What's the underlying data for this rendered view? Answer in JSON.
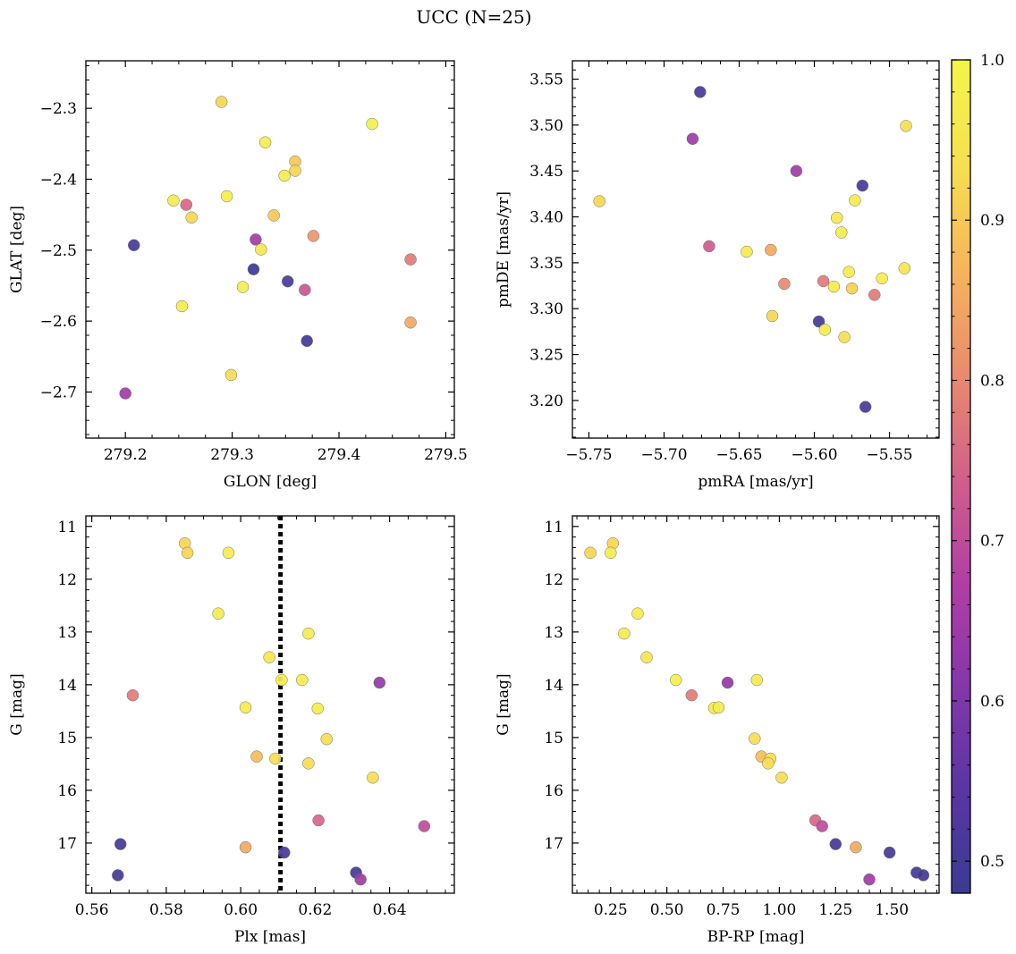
{
  "title": "UCC (N=25)",
  "colorbar": {
    "range": [
      0.48,
      1.0
    ],
    "ticks": [
      0.5,
      0.6,
      0.7,
      0.8,
      0.9,
      1.0
    ],
    "tick_labels": [
      "0.5",
      "0.6",
      "0.7",
      "0.8",
      "0.9",
      "1.0"
    ],
    "colormap": "plasma",
    "stops": [
      "#3c3a93",
      "#5a36a3",
      "#8537a9",
      "#b13fa4",
      "#d2608a",
      "#e98c6d",
      "#f6b55c",
      "#f6e050",
      "#f3f54a"
    ]
  },
  "chart_data": [
    {
      "type": "scatter",
      "id": "glon-glat",
      "xlabel": "GLON [deg]",
      "ylabel": "GLAT [deg]",
      "xlim": [
        279.163,
        279.508
      ],
      "ylim": [
        -2.765,
        -2.233
      ],
      "y_inverted": false,
      "xticks": [
        279.2,
        279.3,
        279.4,
        279.5
      ],
      "xtick_labels": [
        "279.2",
        "279.3",
        "279.4",
        "279.5"
      ],
      "yticks": [
        -2.3,
        -2.4,
        -2.5,
        -2.6,
        -2.7
      ],
      "ytick_labels": [
        "−2.3",
        "−2.4",
        "−2.5",
        "−2.6",
        "−2.7"
      ],
      "points": [
        {
          "x": 279.29,
          "y": -2.291,
          "c": 0.92
        },
        {
          "x": 279.431,
          "y": -2.322,
          "c": 0.98
        },
        {
          "x": 279.331,
          "y": -2.348,
          "c": 0.97
        },
        {
          "x": 279.359,
          "y": -2.375,
          "c": 0.9
        },
        {
          "x": 279.359,
          "y": -2.388,
          "c": 0.92
        },
        {
          "x": 279.349,
          "y": -2.395,
          "c": 0.97
        },
        {
          "x": 279.295,
          "y": -2.424,
          "c": 0.98
        },
        {
          "x": 279.245,
          "y": -2.43,
          "c": 0.97
        },
        {
          "x": 279.257,
          "y": -2.436,
          "c": 0.75
        },
        {
          "x": 279.339,
          "y": -2.451,
          "c": 0.9
        },
        {
          "x": 279.262,
          "y": -2.454,
          "c": 0.92
        },
        {
          "x": 279.376,
          "y": -2.48,
          "c": 0.82
        },
        {
          "x": 279.322,
          "y": -2.485,
          "c": 0.65
        },
        {
          "x": 279.208,
          "y": -2.493,
          "c": 0.5
        },
        {
          "x": 279.327,
          "y": -2.499,
          "c": 0.95
        },
        {
          "x": 279.467,
          "y": -2.513,
          "c": 0.78
        },
        {
          "x": 279.32,
          "y": -2.527,
          "c": 0.48
        },
        {
          "x": 279.352,
          "y": -2.544,
          "c": 0.51
        },
        {
          "x": 279.31,
          "y": -2.552,
          "c": 0.97
        },
        {
          "x": 279.368,
          "y": -2.556,
          "c": 0.72
        },
        {
          "x": 279.253,
          "y": -2.579,
          "c": 0.97
        },
        {
          "x": 279.467,
          "y": -2.602,
          "c": 0.85
        },
        {
          "x": 279.37,
          "y": -2.628,
          "c": 0.49
        },
        {
          "x": 279.299,
          "y": -2.676,
          "c": 0.93
        },
        {
          "x": 279.2,
          "y": -2.702,
          "c": 0.65
        }
      ]
    },
    {
      "type": "scatter",
      "id": "pmra-pmde",
      "xlabel": "pmRA [mas/yr]",
      "ylabel": "pmDE [mas/yr]",
      "xlim": [
        -5.761,
        -5.517
      ],
      "ylim": [
        3.159,
        3.57
      ],
      "y_inverted": false,
      "xticks": [
        -5.75,
        -5.7,
        -5.65,
        -5.6,
        -5.55
      ],
      "xtick_labels": [
        "−5.75",
        "−5.70",
        "−5.65",
        "−5.60",
        "−5.55"
      ],
      "yticks": [
        3.2,
        3.25,
        3.3,
        3.35,
        3.4,
        3.45,
        3.5,
        3.55
      ],
      "ytick_labels": [
        "3.20",
        "3.25",
        "3.30",
        "3.35",
        "3.40",
        "3.45",
        "3.50",
        "3.55"
      ],
      "points": [
        {
          "x": -5.676,
          "y": 3.536,
          "c": 0.5
        },
        {
          "x": -5.539,
          "y": 3.499,
          "c": 0.93
        },
        {
          "x": -5.681,
          "y": 3.485,
          "c": 0.65
        },
        {
          "x": -5.612,
          "y": 3.45,
          "c": 0.65
        },
        {
          "x": -5.568,
          "y": 3.434,
          "c": 0.5
        },
        {
          "x": -5.743,
          "y": 3.417,
          "c": 0.92
        },
        {
          "x": -5.573,
          "y": 3.418,
          "c": 0.97
        },
        {
          "x": -5.585,
          "y": 3.399,
          "c": 0.96
        },
        {
          "x": -5.582,
          "y": 3.383,
          "c": 0.97
        },
        {
          "x": -5.67,
          "y": 3.368,
          "c": 0.73
        },
        {
          "x": -5.645,
          "y": 3.362,
          "c": 0.97
        },
        {
          "x": -5.629,
          "y": 3.364,
          "c": 0.85
        },
        {
          "x": -5.54,
          "y": 3.344,
          "c": 0.95
        },
        {
          "x": -5.577,
          "y": 3.34,
          "c": 0.97
        },
        {
          "x": -5.555,
          "y": 3.333,
          "c": 0.97
        },
        {
          "x": -5.62,
          "y": 3.327,
          "c": 0.8
        },
        {
          "x": -5.594,
          "y": 3.33,
          "c": 0.78
        },
        {
          "x": -5.587,
          "y": 3.324,
          "c": 0.97
        },
        {
          "x": -5.575,
          "y": 3.322,
          "c": 0.91
        },
        {
          "x": -5.56,
          "y": 3.315,
          "c": 0.78
        },
        {
          "x": -5.628,
          "y": 3.292,
          "c": 0.92
        },
        {
          "x": -5.597,
          "y": 3.286,
          "c": 0.49
        },
        {
          "x": -5.593,
          "y": 3.277,
          "c": 0.97
        },
        {
          "x": -5.58,
          "y": 3.269,
          "c": 0.93
        },
        {
          "x": -5.566,
          "y": 3.193,
          "c": 0.5
        }
      ]
    },
    {
      "type": "scatter",
      "id": "plx-g",
      "xlabel": "Plx [mas]",
      "ylabel": "G [mag]",
      "xlim": [
        0.5584,
        0.6574
      ],
      "ylim": [
        10.8,
        17.95
      ],
      "y_inverted": true,
      "xticks": [
        0.56,
        0.58,
        0.6,
        0.62,
        0.64
      ],
      "xtick_labels": [
        "0.56",
        "0.58",
        "0.60",
        "0.62",
        "0.64"
      ],
      "yticks": [
        11,
        12,
        13,
        14,
        15,
        16,
        17
      ],
      "ytick_labels": [
        "11",
        "12",
        "13",
        "14",
        "15",
        "16",
        "17"
      ],
      "vline": {
        "x": 0.6107,
        "style": "dotted"
      },
      "points": [
        {
          "x": 0.585,
          "y": 11.32,
          "c": 0.92
        },
        {
          "x": 0.5857,
          "y": 11.5,
          "c": 0.92
        },
        {
          "x": 0.5967,
          "y": 11.5,
          "c": 0.97
        },
        {
          "x": 0.594,
          "y": 12.65,
          "c": 0.97
        },
        {
          "x": 0.6182,
          "y": 13.03,
          "c": 0.97
        },
        {
          "x": 0.6077,
          "y": 13.48,
          "c": 0.95
        },
        {
          "x": 0.611,
          "y": 13.91,
          "c": 0.98
        },
        {
          "x": 0.6165,
          "y": 13.91,
          "c": 0.97
        },
        {
          "x": 0.6373,
          "y": 13.96,
          "c": 0.63
        },
        {
          "x": 0.571,
          "y": 14.2,
          "c": 0.78
        },
        {
          "x": 0.6013,
          "y": 14.43,
          "c": 0.97
        },
        {
          "x": 0.6207,
          "y": 14.45,
          "c": 0.97
        },
        {
          "x": 0.6231,
          "y": 15.03,
          "c": 0.93
        },
        {
          "x": 0.6043,
          "y": 15.36,
          "c": 0.88
        },
        {
          "x": 0.6093,
          "y": 15.4,
          "c": 0.93
        },
        {
          "x": 0.6182,
          "y": 15.49,
          "c": 0.93
        },
        {
          "x": 0.6355,
          "y": 15.76,
          "c": 0.93
        },
        {
          "x": 0.6209,
          "y": 16.57,
          "c": 0.75
        },
        {
          "x": 0.6493,
          "y": 16.68,
          "c": 0.7
        },
        {
          "x": 0.5677,
          "y": 17.02,
          "c": 0.49
        },
        {
          "x": 0.6013,
          "y": 17.08,
          "c": 0.85
        },
        {
          "x": 0.6117,
          "y": 17.18,
          "c": 0.5
        },
        {
          "x": 0.631,
          "y": 17.56,
          "c": 0.49
        },
        {
          "x": 0.6322,
          "y": 17.69,
          "c": 0.65
        },
        {
          "x": 0.567,
          "y": 17.61,
          "c": 0.49
        }
      ]
    },
    {
      "type": "scatter",
      "id": "bprp-g",
      "xlabel": "BP-RP [mag]",
      "ylabel": "G [mag]",
      "xlim": [
        0.08,
        1.71
      ],
      "ylim": [
        10.8,
        17.95
      ],
      "y_inverted": true,
      "xticks": [
        0.25,
        0.5,
        0.75,
        1.0,
        1.25,
        1.5
      ],
      "xtick_labels": [
        "0.25",
        "0.50",
        "0.75",
        "1.00",
        "1.25",
        "1.50"
      ],
      "yticks": [
        11,
        12,
        13,
        14,
        15,
        16,
        17
      ],
      "ytick_labels": [
        "11",
        "12",
        "13",
        "14",
        "15",
        "16",
        "17"
      ],
      "points": [
        {
          "x": 0.26,
          "y": 11.32,
          "c": 0.92
        },
        {
          "x": 0.16,
          "y": 11.5,
          "c": 0.92
        },
        {
          "x": 0.25,
          "y": 11.5,
          "c": 0.97
        },
        {
          "x": 0.37,
          "y": 12.65,
          "c": 0.97
        },
        {
          "x": 0.31,
          "y": 13.03,
          "c": 0.97
        },
        {
          "x": 0.41,
          "y": 13.48,
          "c": 0.95
        },
        {
          "x": 0.54,
          "y": 13.91,
          "c": 0.98
        },
        {
          "x": 0.9,
          "y": 13.91,
          "c": 0.97
        },
        {
          "x": 0.77,
          "y": 13.96,
          "c": 0.63
        },
        {
          "x": 0.61,
          "y": 14.2,
          "c": 0.78
        },
        {
          "x": 0.71,
          "y": 14.44,
          "c": 0.97
        },
        {
          "x": 0.73,
          "y": 14.43,
          "c": 0.97
        },
        {
          "x": 0.89,
          "y": 15.02,
          "c": 0.93
        },
        {
          "x": 0.92,
          "y": 15.36,
          "c": 0.88
        },
        {
          "x": 0.96,
          "y": 15.4,
          "c": 0.93
        },
        {
          "x": 0.95,
          "y": 15.49,
          "c": 0.93
        },
        {
          "x": 1.01,
          "y": 15.76,
          "c": 0.93
        },
        {
          "x": 1.16,
          "y": 16.57,
          "c": 0.75
        },
        {
          "x": 1.19,
          "y": 16.68,
          "c": 0.7
        },
        {
          "x": 1.25,
          "y": 17.02,
          "c": 0.49
        },
        {
          "x": 1.34,
          "y": 17.08,
          "c": 0.85
        },
        {
          "x": 1.49,
          "y": 17.18,
          "c": 0.5
        },
        {
          "x": 1.61,
          "y": 17.56,
          "c": 0.49
        },
        {
          "x": 1.4,
          "y": 17.69,
          "c": 0.65
        },
        {
          "x": 1.64,
          "y": 17.61,
          "c": 0.49
        }
      ]
    }
  ]
}
